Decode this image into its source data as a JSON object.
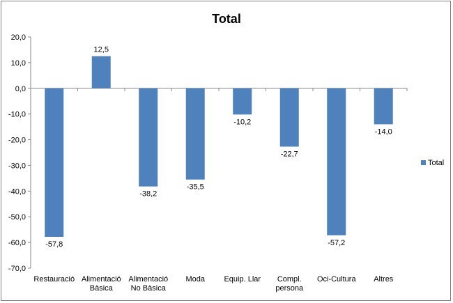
{
  "chart_data": {
    "type": "bar",
    "title": "Total",
    "categories": [
      [
        "Restauració"
      ],
      [
        "Alimentació",
        "Bàsica"
      ],
      [
        "Alimentació",
        "No Bàsica"
      ],
      [
        "Moda"
      ],
      [
        "Equip. Llar"
      ],
      [
        "Compl.",
        "persona"
      ],
      [
        "Oci-Cultura"
      ],
      [
        "Altres"
      ]
    ],
    "series": [
      {
        "name": "Total",
        "color": "#4f81bd",
        "values": [
          -57.8,
          12.5,
          -38.2,
          -35.5,
          -10.2,
          -22.7,
          -57.2,
          -14.0
        ],
        "value_labels": [
          "-57,8",
          "12,5",
          "-38,2",
          "-35,5",
          "-10,2",
          "-22,7",
          "-57,2",
          "-14,0"
        ]
      }
    ],
    "ylim": [
      -70,
      20
    ],
    "yticks": [
      20,
      10,
      0,
      -10,
      -20,
      -30,
      -40,
      -50,
      -60,
      -70
    ],
    "ytick_labels": [
      "20,0",
      "10,0",
      "0,0",
      "-10,0",
      "-20,0",
      "-30,0",
      "-40,0",
      "-50,0",
      "-60,0",
      "-70,0"
    ],
    "grid": false,
    "legend_position": "right"
  }
}
